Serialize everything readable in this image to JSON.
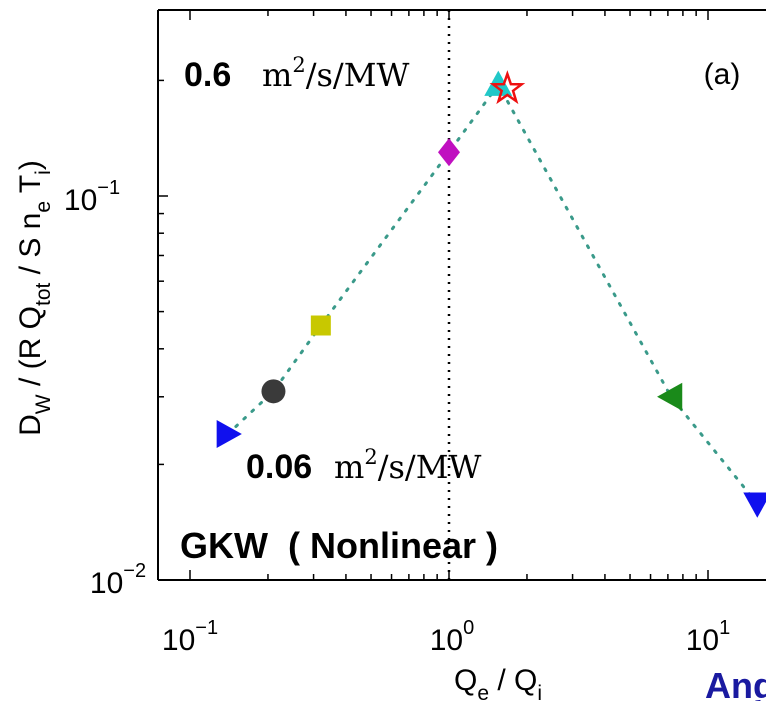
{
  "chart_data": {
    "type": "scatter",
    "title": "",
    "xlabel": {
      "main": "Q",
      "sub1": "e",
      "mid": " / Q",
      "sub2": "i"
    },
    "ylabel": {
      "p1": "D",
      "s1": "W",
      "p2": " / (R Q",
      "s2": "tot",
      "p3": " / S n",
      "s3": "e",
      "p4": " T",
      "s4": "i",
      "p5": ")"
    },
    "xscale": "log",
    "yscale": "log",
    "xlim": [
      0.1,
      20
    ],
    "ylim": [
      0.01,
      0.25
    ],
    "x_ticks": [
      {
        "value": 0.1,
        "base": "10",
        "exp": "−1"
      },
      {
        "value": 1,
        "base": "10",
        "exp": "0"
      },
      {
        "value": 10,
        "base": "10",
        "exp": "1"
      }
    ],
    "y_ticks": [
      {
        "value": 0.01,
        "base": "10",
        "exp": "−2"
      },
      {
        "value": 0.1,
        "base": "10",
        "exp": "−1"
      }
    ],
    "reference_line": {
      "x": 1.0,
      "style": "dotted"
    },
    "connector": {
      "style": "dotted",
      "color": "#3a9a8a"
    },
    "points": [
      {
        "x": 0.14,
        "y": 0.024,
        "marker": "triangle-right",
        "color": "#1010ee"
      },
      {
        "x": 0.21,
        "y": 0.031,
        "marker": "circle",
        "color": "#3a3a3a"
      },
      {
        "x": 0.32,
        "y": 0.046,
        "marker": "square",
        "color": "#c8c800"
      },
      {
        "x": 1.0,
        "y": 0.13,
        "marker": "diamond",
        "color": "#c010c0"
      },
      {
        "x": 1.55,
        "y": 0.195,
        "marker": "triangle-up",
        "color": "#20c8c8"
      },
      {
        "x": 1.68,
        "y": 0.19,
        "marker": "star",
        "color": "#ee1010"
      },
      {
        "x": 7.2,
        "y": 0.03,
        "marker": "triangle-left",
        "color": "#1a8a1a"
      },
      {
        "x": 15.5,
        "y": 0.0158,
        "marker": "triangle-down",
        "color": "#1010ee"
      }
    ],
    "annotations": {
      "top": {
        "value": "0.6",
        "unit_main": "m",
        "unit_sup": "2",
        "unit_rest": "/s/MW"
      },
      "bottom": {
        "value": "0.06",
        "unit_main": "m",
        "unit_sup": "2",
        "unit_rest": "/s/MW"
      },
      "code": "GKW  ( Nonlinear )",
      "panel": "(a)"
    }
  },
  "corner_text": "Ang"
}
